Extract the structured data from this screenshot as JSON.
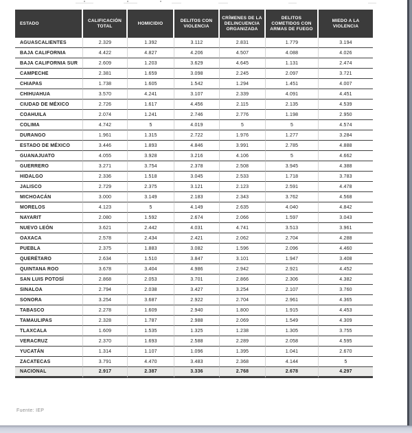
{
  "table": {
    "columns": [
      "ESTADO",
      "CALIFICACIÓN TOTAL",
      "HOMICIDIO",
      "DELITOS CON VIOLENCIA",
      "CRÍMENES DE LA DELINCUENCIA ORGANIZADA",
      "DELITOS COMETIDOS CON ARMAS DE FUEGO",
      "MIEDO A LA VIOLENCIA"
    ],
    "rows": [
      {
        "estado": "AGUASCALIENTES",
        "values": [
          "2.329",
          "1.392",
          "3.112",
          "2.831",
          "1.779",
          "3.194"
        ]
      },
      {
        "estado": "BAJA CALIFORNIA",
        "values": [
          "4.422",
          "4.827",
          "4.206",
          "4.507",
          "4.088",
          "4.026"
        ]
      },
      {
        "estado": "BAJA CALIFORNIA SUR",
        "values": [
          "2.609",
          "1.203",
          "3.629",
          "4.645",
          "1.131",
          "2.474"
        ]
      },
      {
        "estado": "CAMPECHE",
        "values": [
          "2.381",
          "1.659",
          "3.098",
          "2.245",
          "2.097",
          "3.721"
        ]
      },
      {
        "estado": "CHIAPAS",
        "values": [
          "1.738",
          "1.605",
          "1.542",
          "1.294",
          "1.451",
          "4.007"
        ]
      },
      {
        "estado": "CHIHUAHUA",
        "values": [
          "3.570",
          "4.241",
          "3.107",
          "2.339",
          "4.091",
          "4.451"
        ]
      },
      {
        "estado": "CIUDAD DE MÉXICO",
        "values": [
          "2.726",
          "1.617",
          "4.456",
          "2.115",
          "2.135",
          "4.539"
        ]
      },
      {
        "estado": "COAHUILA",
        "values": [
          "2.074",
          "1.241",
          "2.746",
          "2.776",
          "1.198",
          "2.950"
        ]
      },
      {
        "estado": "COLIMA",
        "values": [
          "4.742",
          "5",
          "4.019",
          "5",
          "5",
          "4.574"
        ]
      },
      {
        "estado": "DURANGO",
        "values": [
          "1.961",
          "1.315",
          "2.722",
          "1.976",
          "1.277",
          "3.284"
        ]
      },
      {
        "estado": "ESTADO DE MÉXICO",
        "values": [
          "3.446",
          "1.893",
          "4.846",
          "3.991",
          "2.785",
          "4.888"
        ]
      },
      {
        "estado": "GUANAJUATO",
        "values": [
          "4.055",
          "3.928",
          "3.216",
          "4.106",
          "5",
          "4.662"
        ]
      },
      {
        "estado": "GUERRERO",
        "values": [
          "3.271",
          "3.754",
          "2.378",
          "2.508",
          "3.945",
          "4.388"
        ]
      },
      {
        "estado": "HIDALGO",
        "values": [
          "2.336",
          "1.518",
          "3.045",
          "2.533",
          "1.718",
          "3.783"
        ]
      },
      {
        "estado": "JALISCO",
        "values": [
          "2.729",
          "2.375",
          "3.121",
          "2.123",
          "2.591",
          "4.478"
        ]
      },
      {
        "estado": "MICHOACÁN",
        "values": [
          "3.000",
          "3.149",
          "2.183",
          "2.343",
          "3.762",
          "4.568"
        ]
      },
      {
        "estado": "MORELOS",
        "values": [
          "4.123",
          "5",
          "4.149",
          "2.635",
          "4.040",
          "4.842"
        ]
      },
      {
        "estado": "NAYARIT",
        "values": [
          "2.080",
          "1.592",
          "2.674",
          "2.066",
          "1.597",
          "3.043"
        ]
      },
      {
        "estado": "NUEVO LEÓN",
        "values": [
          "3.621",
          "2.442",
          "4.031",
          "4.741",
          "3.513",
          "3.961"
        ]
      },
      {
        "estado": "OAXACA",
        "values": [
          "2.578",
          "2.434",
          "2.421",
          "2.062",
          "2.704",
          "4.288"
        ]
      },
      {
        "estado": "PUEBLA",
        "values": [
          "2.375",
          "1.883",
          "3.082",
          "1.596",
          "2.096",
          "4.460"
        ]
      },
      {
        "estado": "QUERÉTARO",
        "values": [
          "2.634",
          "1.510",
          "3.847",
          "3.101",
          "1.947",
          "3.408"
        ]
      },
      {
        "estado": "QUINTANA ROO",
        "values": [
          "3.678",
          "3.404",
          "4.986",
          "2.942",
          "2.921",
          "4.452"
        ]
      },
      {
        "estado": "SAN LUIS POTOSÍ",
        "values": [
          "2.868",
          "2.053",
          "3.701",
          "2.866",
          "2.306",
          "4.382"
        ]
      },
      {
        "estado": "SINALOA",
        "values": [
          "2.794",
          "2.038",
          "3.427",
          "3.254",
          "2.107",
          "3.760"
        ]
      },
      {
        "estado": "SONORA",
        "values": [
          "3.254",
          "3.687",
          "2.922",
          "2.704",
          "2.961",
          "4.365"
        ]
      },
      {
        "estado": "TABASCO",
        "values": [
          "2.278",
          "1.609",
          "2.940",
          "1.800",
          "1.915",
          "4.453"
        ]
      },
      {
        "estado": "TAMAULIPAS",
        "values": [
          "2.328",
          "1.787",
          "2.988",
          "2.069",
          "1.549",
          "4.309"
        ]
      },
      {
        "estado": "TLAXCALA",
        "values": [
          "1.609",
          "1.535",
          "1.325",
          "1.238",
          "1.305",
          "3.755"
        ]
      },
      {
        "estado": "VERACRUZ",
        "values": [
          "2.370",
          "1.693",
          "2.588",
          "2.289",
          "2.058",
          "4.595"
        ]
      },
      {
        "estado": "YUCATÁN",
        "values": [
          "1.314",
          "1.107",
          "1.096",
          "1.395",
          "1.041",
          "2.670"
        ]
      },
      {
        "estado": "ZACATECAS",
        "values": [
          "3.791",
          "4.470",
          "3.483",
          "2.368",
          "4.144",
          "5"
        ]
      }
    ],
    "total_row": {
      "estado": "NACIONAL",
      "values": [
        "2.917",
        "2.387",
        "3.336",
        "2.768",
        "2.678",
        "4.297"
      ]
    }
  },
  "footer": {
    "source": "Fuente: IEP"
  }
}
